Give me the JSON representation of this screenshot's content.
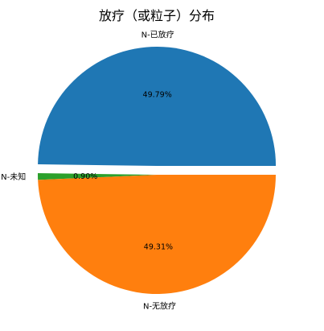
{
  "chart_data": {
    "type": "pie",
    "title": "放疗（或粒子）分布",
    "slices": [
      {
        "label": "N-已放疗",
        "value": 49.79,
        "percent_label": "49.79%",
        "color": "#1f77b4",
        "exploded": true
      },
      {
        "label": "N-未知",
        "value": 0.9,
        "percent_label": "0.90%",
        "color": "#2ca02c",
        "exploded": false
      },
      {
        "label": "N-无放疗",
        "value": 49.31,
        "percent_label": "49.31%",
        "color": "#ff7f0e",
        "exploded": false
      }
    ],
    "start_angle_deg": 0,
    "direction": "counterclockwise"
  }
}
